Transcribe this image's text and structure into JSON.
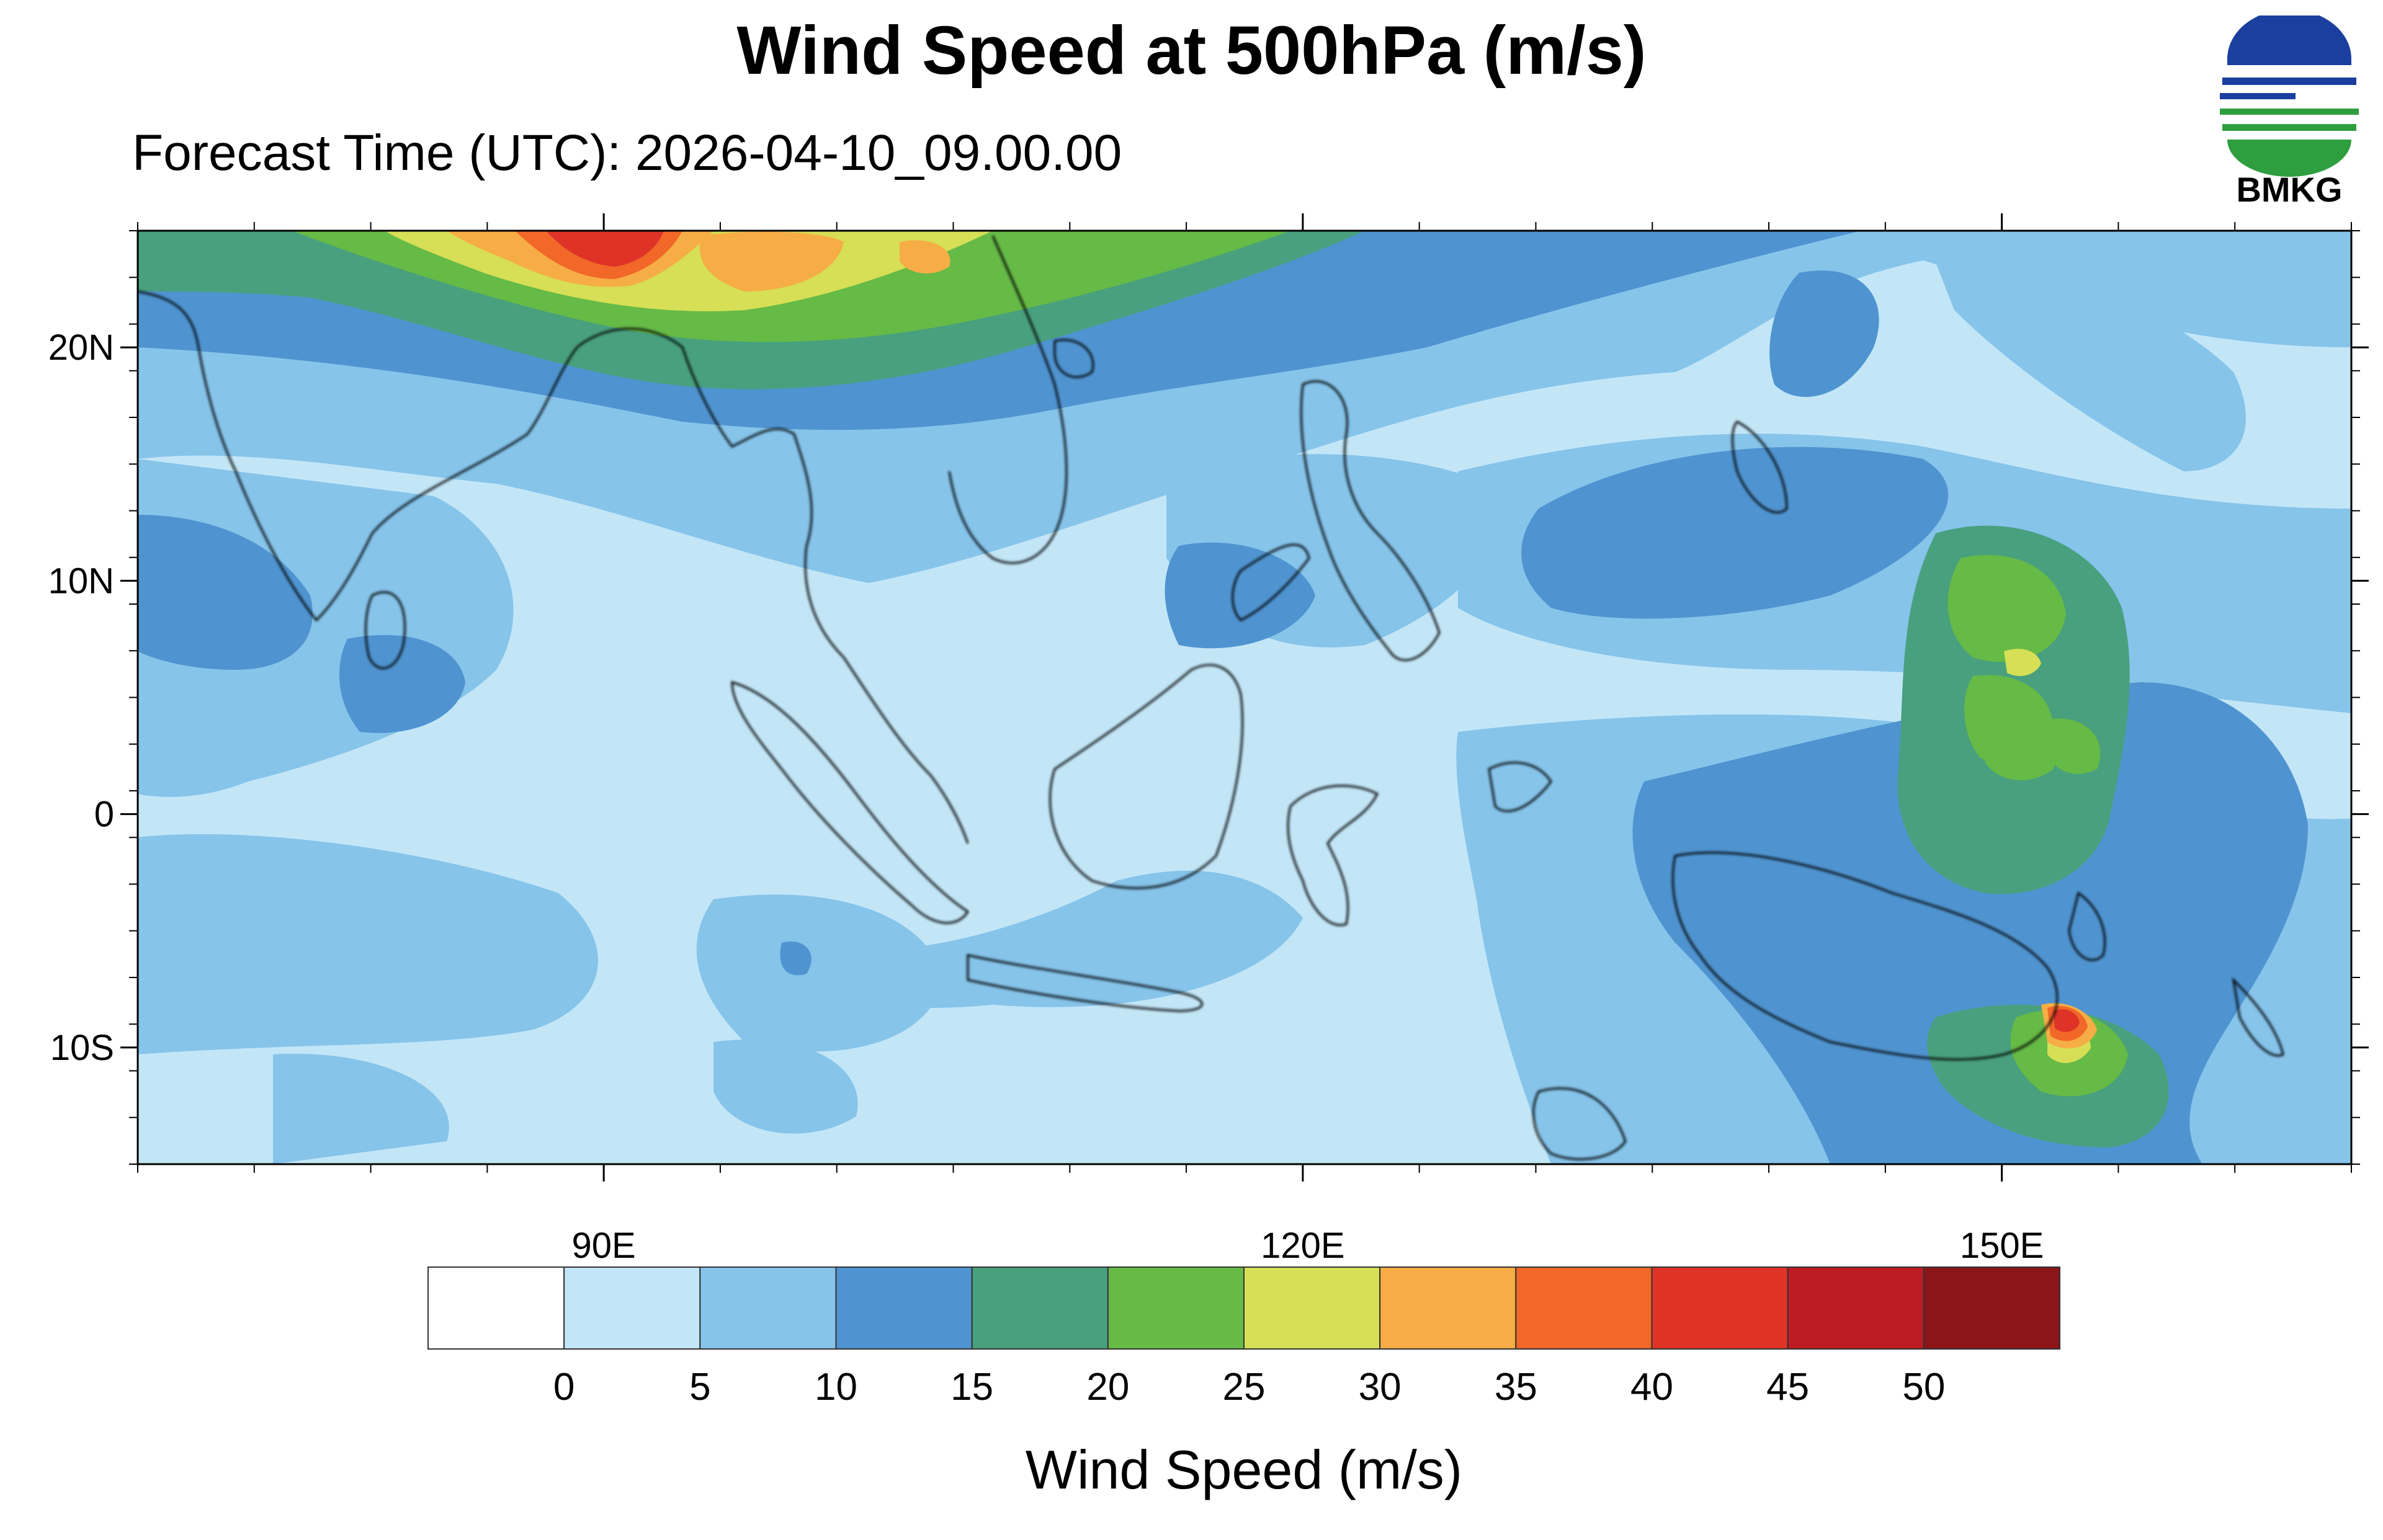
{
  "title": "Wind Speed at 500hPa (m/s)",
  "subtitle": "Forecast Time (UTC): 2026-04-10_09.00.00",
  "logo": {
    "text": "BMKG",
    "blue": "#1a3f9e",
    "green": "#2f9e3f"
  },
  "map": {
    "lon_range": [
      70,
      165
    ],
    "lat_range": [
      -15,
      25
    ],
    "lat_ticks": [
      {
        "value": 20,
        "label": "20N"
      },
      {
        "value": 10,
        "label": "10N"
      },
      {
        "value": 0,
        "label": "0"
      },
      {
        "value": -10,
        "label": "10S"
      }
    ],
    "lon_ticks": [
      {
        "value": 90,
        "label": "90E"
      },
      {
        "value": 120,
        "label": "120E"
      },
      {
        "value": 150,
        "label": "150E"
      }
    ]
  },
  "colorbar": {
    "colors": [
      "#ffffff",
      "#c3e6f7",
      "#86c4ea",
      "#4f94d0",
      "#48a07e",
      "#66ba46",
      "#d6df55",
      "#f6ad45",
      "#f16828",
      "#df3328",
      "#bd1c25",
      "#8c1519"
    ],
    "levels": [
      "0",
      "5",
      "10",
      "15",
      "20",
      "25",
      "30",
      "35",
      "40",
      "45",
      "50"
    ],
    "label": "Wind Speed (m/s)"
  }
}
